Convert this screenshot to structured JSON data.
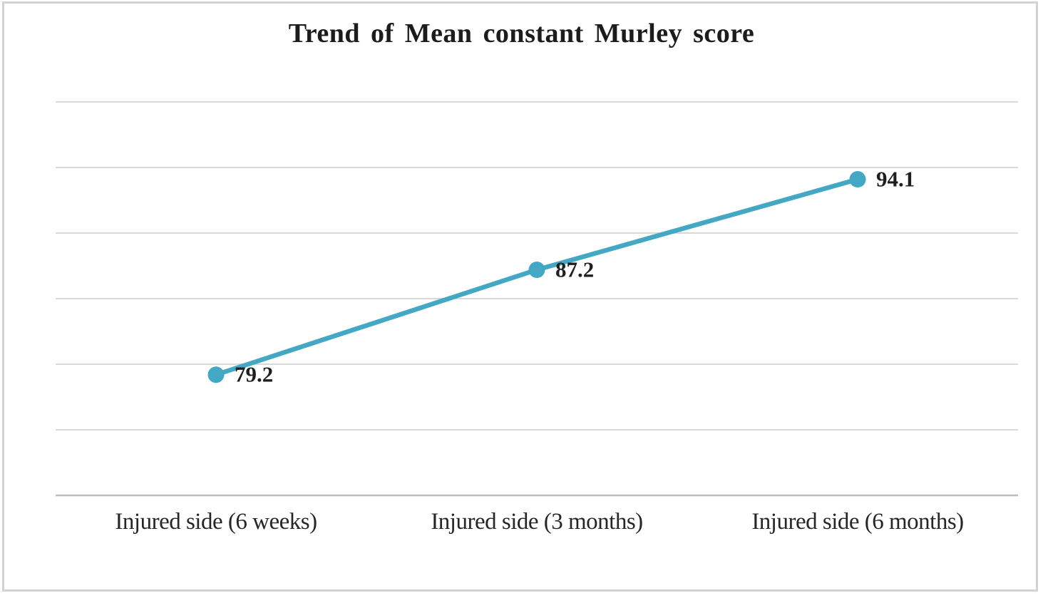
{
  "chart_data": {
    "type": "line",
    "title": "Trend of Mean constant Murley score",
    "categories": [
      "Injured side (6 weeks)",
      "Injured side (3 months)",
      "Injured side (6 months)"
    ],
    "series": [
      {
        "values": [
          79.2,
          87.2,
          94.1
        ],
        "labels": [
          "79.2",
          "87.2",
          "94.1"
        ]
      }
    ],
    "xlabel": "",
    "ylabel": "",
    "ylim": [
      70,
      100
    ],
    "y_major_unit": 5,
    "grid": true,
    "y_tick_labels_visible": false,
    "legend_position": "none",
    "data_label_position": "right-of-point",
    "colors": {
      "line": "#44A7C4",
      "marker": "#44A7C4",
      "gridline": "#D9D9D9",
      "axis_line": "#BDBDBD",
      "title_text": "#1C1C1C",
      "label_text": "#1F1F1F"
    }
  }
}
